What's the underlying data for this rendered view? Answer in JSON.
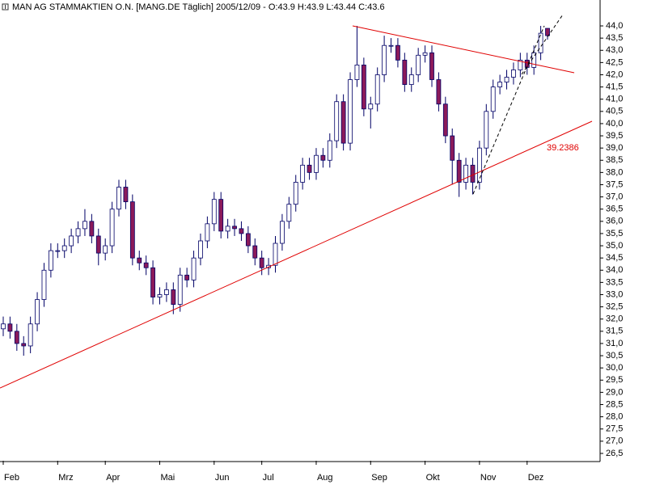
{
  "chart_data": {
    "type": "candlestick",
    "title": "MAN AG STAMMAKTIEN O.N. [MANG.DE  Täglich] 2005/12/09 - O:43.9 H:43.9 L:43.44 C:43.6",
    "annotation": "39.2386",
    "categories": [
      "Feb",
      null,
      null,
      null,
      null,
      null,
      null,
      null,
      "Mrz",
      null,
      null,
      null,
      null,
      null,
      null,
      "Apr",
      null,
      null,
      null,
      null,
      null,
      null,
      null,
      "Mai",
      null,
      null,
      null,
      null,
      null,
      null,
      null,
      "Jun",
      null,
      null,
      null,
      null,
      null,
      null,
      "Jul",
      null,
      null,
      null,
      null,
      null,
      null,
      null,
      "Aug",
      null,
      null,
      null,
      null,
      null,
      null,
      null,
      "Sep",
      null,
      null,
      null,
      null,
      null,
      null,
      null,
      "Okt",
      null,
      null,
      null,
      null,
      null,
      null,
      null,
      "Nov",
      null,
      null,
      null,
      null,
      null,
      null,
      "Dez",
      null,
      null,
      null
    ],
    "open": [
      31.6,
      31.8,
      31.5,
      31.0,
      30.9,
      31.8,
      32.8,
      34.0,
      34.8,
      34.8,
      35.0,
      35.4,
      35.7,
      36.0,
      35.4,
      34.7,
      35.0,
      36.5,
      37.4,
      36.8,
      34.5,
      34.3,
      34.1,
      32.9,
      33.0,
      33.2,
      32.6,
      33.8,
      33.6,
      34.5,
      35.2,
      35.9,
      36.9,
      35.6,
      35.8,
      35.7,
      35.5,
      35.0,
      34.5,
      34.1,
      34.2,
      35.1,
      36.0,
      36.7,
      37.6,
      38.3,
      38.0,
      38.7,
      38.5,
      39.3,
      40.9,
      39.2,
      41.8,
      42.4,
      40.6,
      40.8,
      42.0,
      43.2,
      43.2,
      42.6,
      41.6,
      42.0,
      42.8,
      42.9,
      41.8,
      40.8,
      39.5,
      38.5,
      37.6,
      38.3,
      37.6,
      39.0,
      40.5,
      41.5,
      41.7,
      41.9,
      42.2,
      42.6,
      42.3,
      42.9,
      43.9
    ],
    "high": [
      32.1,
      32.1,
      31.8,
      31.3,
      32.1,
      33.1,
      34.3,
      35.1,
      35.1,
      35.3,
      35.7,
      36.0,
      36.5,
      36.3,
      35.7,
      35.3,
      36.8,
      37.7,
      37.7,
      37.1,
      34.8,
      34.6,
      34.4,
      33.3,
      33.5,
      33.5,
      34.1,
      34.1,
      34.8,
      35.5,
      36.2,
      37.2,
      37.2,
      36.1,
      36.1,
      36.0,
      35.8,
      35.3,
      34.8,
      34.5,
      35.4,
      36.3,
      37.0,
      37.9,
      38.6,
      38.6,
      39.0,
      39.0,
      39.6,
      41.2,
      41.2,
      42.1,
      44.0,
      42.7,
      41.1,
      42.3,
      43.6,
      43.5,
      43.5,
      42.9,
      42.3,
      43.1,
      43.2,
      43.2,
      42.1,
      41.1,
      39.8,
      38.8,
      38.6,
      38.6,
      39.3,
      40.8,
      41.8,
      42.0,
      42.2,
      42.5,
      42.9,
      42.9,
      43.2,
      44.0,
      43.9
    ],
    "low": [
      31.3,
      31.2,
      30.7,
      30.5,
      30.6,
      31.5,
      32.5,
      33.7,
      34.5,
      34.5,
      34.7,
      35.1,
      35.4,
      35.1,
      34.2,
      34.4,
      34.7,
      36.2,
      36.5,
      34.2,
      34.0,
      33.8,
      32.6,
      32.6,
      32.7,
      32.2,
      32.3,
      33.3,
      33.3,
      34.2,
      34.9,
      35.6,
      35.3,
      35.3,
      35.4,
      35.2,
      34.7,
      34.2,
      33.8,
      33.8,
      33.9,
      34.8,
      35.7,
      36.4,
      37.3,
      37.7,
      37.7,
      38.2,
      38.2,
      39.0,
      38.9,
      38.9,
      41.5,
      40.3,
      39.8,
      40.5,
      41.7,
      42.9,
      42.3,
      41.3,
      41.3,
      41.7,
      42.5,
      41.5,
      40.5,
      39.2,
      37.5,
      37.0,
      37.3,
      37.1,
      37.3,
      38.7,
      40.2,
      41.2,
      41.4,
      41.6,
      41.9,
      42.0,
      42.0,
      42.6,
      43.44
    ],
    "close": [
      31.8,
      31.5,
      31.0,
      30.9,
      31.8,
      32.8,
      34.0,
      34.8,
      34.8,
      35.0,
      35.4,
      35.7,
      36.0,
      35.4,
      34.7,
      35.0,
      36.5,
      37.4,
      36.8,
      34.5,
      34.3,
      34.1,
      32.9,
      33.0,
      33.2,
      32.6,
      33.8,
      33.6,
      34.5,
      35.2,
      35.9,
      36.9,
      35.6,
      35.8,
      35.7,
      35.5,
      35.0,
      34.5,
      34.1,
      34.2,
      35.1,
      36.0,
      36.7,
      37.6,
      38.3,
      38.0,
      38.7,
      38.5,
      39.3,
      40.9,
      39.2,
      41.8,
      42.4,
      40.6,
      40.8,
      42.0,
      43.2,
      43.2,
      42.6,
      41.6,
      42.0,
      42.8,
      42.9,
      41.8,
      40.8,
      39.5,
      38.5,
      37.6,
      38.3,
      37.6,
      39.0,
      40.5,
      41.5,
      41.7,
      41.9,
      42.2,
      42.6,
      42.3,
      42.9,
      43.7,
      43.6
    ],
    "up_color": "#ffffff",
    "down_color": "#8b1a5a",
    "wick_color": "#000066",
    "ylim": [
      26.2,
      45.06
    ],
    "yticks": [
      {
        "value": 26.5,
        "label": "26,5"
      },
      {
        "value": 27,
        "label": "27,0"
      },
      {
        "value": 27.5,
        "label": "27,5"
      },
      {
        "value": 28,
        "label": "28,0"
      },
      {
        "value": 28.5,
        "label": "28,5"
      },
      {
        "value": 29,
        "label": "29,0"
      },
      {
        "value": 29.5,
        "label": "29,5"
      },
      {
        "value": 30,
        "label": "30,0"
      },
      {
        "value": 30.5,
        "label": "30,5"
      },
      {
        "value": 31,
        "label": "31,0"
      },
      {
        "value": 31.5,
        "label": "31,5"
      },
      {
        "value": 32,
        "label": "32,0"
      },
      {
        "value": 32.5,
        "label": "32,5"
      },
      {
        "value": 33,
        "label": "33,0"
      },
      {
        "value": 33.5,
        "label": "33,5"
      },
      {
        "value": 34,
        "label": "34,0"
      },
      {
        "value": 34.5,
        "label": "34,5"
      },
      {
        "value": 35,
        "label": "35,0"
      },
      {
        "value": 35.5,
        "label": "35,5"
      },
      {
        "value": 36,
        "label": "36,0"
      },
      {
        "value": 36.5,
        "label": "36,5"
      },
      {
        "value": 37,
        "label": "37,0"
      },
      {
        "value": 37.5,
        "label": "37,5"
      },
      {
        "value": 38,
        "label": "38,0"
      },
      {
        "value": 38.5,
        "label": "38,5"
      },
      {
        "value": 39,
        "label": "39,0"
      },
      {
        "value": 39.5,
        "label": "39,5"
      },
      {
        "value": 40,
        "label": "40,0"
      },
      {
        "value": 40.5,
        "label": "40,5"
      },
      {
        "value": 41,
        "label": "41,0"
      },
      {
        "value": 41.5,
        "label": "41,5"
      },
      {
        "value": 42,
        "label": "42,0"
      },
      {
        "value": 42.5,
        "label": "42,5"
      },
      {
        "value": 43,
        "label": "43,0"
      },
      {
        "value": 43.5,
        "label": "43,5"
      },
      {
        "value": 44,
        "label": "44,0"
      }
    ]
  }
}
